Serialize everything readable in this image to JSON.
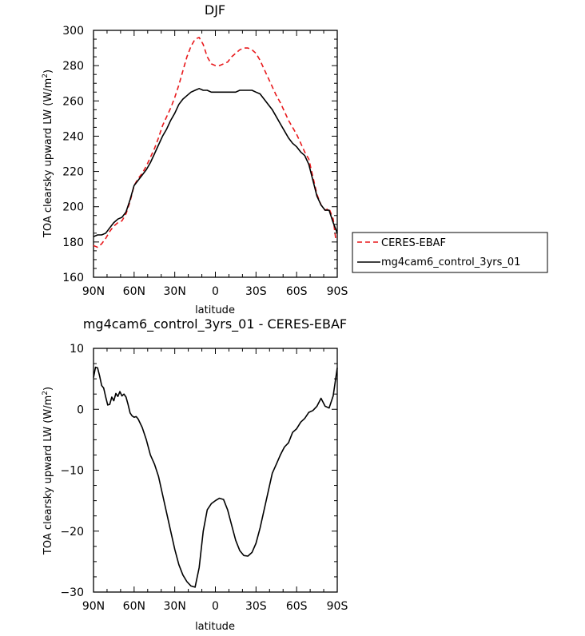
{
  "chart_data": [
    {
      "type": "line",
      "title": "DJF",
      "xlabel": "latitude",
      "ylabel": "TOA clearsky upward LW (W/m",
      "ylabel_sup": "2",
      "ylabel_close": ")",
      "xlim": [
        90,
        -90
      ],
      "ylim": [
        160,
        300
      ],
      "x_ticks": [
        90,
        60,
        30,
        0,
        -30,
        -60,
        -90
      ],
      "x_tick_labels": [
        "90N",
        "60N",
        "30N",
        "0",
        "30S",
        "60S",
        "90S"
      ],
      "y_ticks": [
        160,
        180,
        200,
        220,
        240,
        260,
        280,
        300
      ],
      "y_tick_labels": [
        "160",
        "180",
        "200",
        "220",
        "240",
        "260",
        "280",
        "300"
      ],
      "grid": false,
      "legend_position": "right-bottom",
      "series": [
        {
          "name": "CERES-EBAF",
          "color": "#e8191c",
          "dash": "dashed",
          "points": [
            [
              90,
              178
            ],
            [
              87,
              177
            ],
            [
              84,
              179
            ],
            [
              81,
              182
            ],
            [
              78,
              186
            ],
            [
              75,
              189
            ],
            [
              72,
              191
            ],
            [
              69,
              192
            ],
            [
              66,
              196
            ],
            [
              63,
              203
            ],
            [
              60,
              212
            ],
            [
              57,
              216
            ],
            [
              54,
              219
            ],
            [
              51,
              223
            ],
            [
              48,
              228
            ],
            [
              45,
              233
            ],
            [
              42,
              239
            ],
            [
              39,
              246
            ],
            [
              36,
              251
            ],
            [
              33,
              256
            ],
            [
              30,
              262
            ],
            [
              27,
              269
            ],
            [
              24,
              277
            ],
            [
              21,
              285
            ],
            [
              18,
              291
            ],
            [
              15,
              295
            ],
            [
              12,
              296
            ],
            [
              9,
              292
            ],
            [
              6,
              285
            ],
            [
              3,
              281
            ],
            [
              0,
              280
            ],
            [
              -3,
              280
            ],
            [
              -6,
              281
            ],
            [
              -9,
              282
            ],
            [
              -12,
              285
            ],
            [
              -15,
              287
            ],
            [
              -18,
              289
            ],
            [
              -21,
              290
            ],
            [
              -24,
              290
            ],
            [
              -27,
              289
            ],
            [
              -30,
              287
            ],
            [
              -33,
              283
            ],
            [
              -36,
              278
            ],
            [
              -39,
              273
            ],
            [
              -42,
              268
            ],
            [
              -45,
              263
            ],
            [
              -48,
              259
            ],
            [
              -51,
              254
            ],
            [
              -54,
              249
            ],
            [
              -57,
              245
            ],
            [
              -60,
              241
            ],
            [
              -63,
              236
            ],
            [
              -66,
              231
            ],
            [
              -69,
              227
            ],
            [
              -72,
              217
            ],
            [
              -75,
              207
            ],
            [
              -78,
              201
            ],
            [
              -81,
              198
            ],
            [
              -84,
              199
            ],
            [
              -87,
              193
            ],
            [
              -89,
              181
            ]
          ]
        },
        {
          "name": "mg4cam6_control_3yrs_01",
          "color": "#000000",
          "dash": "solid",
          "points": [
            [
              90,
              183
            ],
            [
              87,
              184
            ],
            [
              84,
              184
            ],
            [
              81,
              185
            ],
            [
              78,
              188
            ],
            [
              75,
              191
            ],
            [
              72,
              193
            ],
            [
              69,
              194
            ],
            [
              66,
              197
            ],
            [
              63,
              204
            ],
            [
              60,
              212
            ],
            [
              57,
              215
            ],
            [
              54,
              218
            ],
            [
              51,
              221
            ],
            [
              48,
              225
            ],
            [
              45,
              230
            ],
            [
              42,
              235
            ],
            [
              39,
              240
            ],
            [
              36,
              244
            ],
            [
              33,
              249
            ],
            [
              30,
              253
            ],
            [
              27,
              258
            ],
            [
              24,
              261
            ],
            [
              21,
              263
            ],
            [
              18,
              265
            ],
            [
              15,
              266
            ],
            [
              12,
              267
            ],
            [
              9,
              266
            ],
            [
              6,
              266
            ],
            [
              3,
              265
            ],
            [
              0,
              265
            ],
            [
              -3,
              265
            ],
            [
              -6,
              265
            ],
            [
              -9,
              265
            ],
            [
              -12,
              265
            ],
            [
              -15,
              265
            ],
            [
              -18,
              266
            ],
            [
              -21,
              266
            ],
            [
              -24,
              266
            ],
            [
              -27,
              266
            ],
            [
              -30,
              265
            ],
            [
              -33,
              264
            ],
            [
              -36,
              261
            ],
            [
              -39,
              258
            ],
            [
              -42,
              255
            ],
            [
              -45,
              251
            ],
            [
              -48,
              247
            ],
            [
              -51,
              243
            ],
            [
              -54,
              239
            ],
            [
              -57,
              236
            ],
            [
              -60,
              234
            ],
            [
              -63,
              231
            ],
            [
              -66,
              229
            ],
            [
              -69,
              224
            ],
            [
              -72,
              215
            ],
            [
              -75,
              206
            ],
            [
              -78,
              201
            ],
            [
              -81,
              198
            ],
            [
              -84,
              198
            ],
            [
              -87,
              191
            ],
            [
              -90,
              185
            ]
          ]
        }
      ]
    },
    {
      "type": "line",
      "title": "mg4cam6_control_3yrs_01 - CERES-EBAF",
      "xlabel": "latitude",
      "ylabel": "TOA clearsky upward LW (W/m",
      "ylabel_sup": "2",
      "ylabel_close": ")",
      "xlim": [
        90,
        -90
      ],
      "ylim": [
        -30,
        10
      ],
      "x_ticks": [
        90,
        60,
        30,
        0,
        -30,
        -60,
        -90
      ],
      "x_tick_labels": [
        "90N",
        "60N",
        "30N",
        "0",
        "30S",
        "60S",
        "90S"
      ],
      "y_ticks": [
        -30,
        -20,
        -10,
        0,
        10
      ],
      "y_tick_labels": [
        "−30",
        "−20",
        "−10",
        "0",
        "10"
      ],
      "grid": false,
      "series": [
        {
          "color": "#000000",
          "dash": "solid",
          "points": [
            [
              90,
              5.2
            ],
            [
              88.5,
              6.9
            ],
            [
              87,
              6.8
            ],
            [
              85.5,
              5.5
            ],
            [
              84,
              3.9
            ],
            [
              82.5,
              3.5
            ],
            [
              81,
              2
            ],
            [
              79.5,
              0.7
            ],
            [
              78,
              0.8
            ],
            [
              76.5,
              2
            ],
            [
              75,
              1.4
            ],
            [
              73.5,
              2.6
            ],
            [
              72,
              2.1
            ],
            [
              70.5,
              2.9
            ],
            [
              69,
              2.2
            ],
            [
              67.5,
              2.5
            ],
            [
              66,
              2
            ],
            [
              64.5,
              0.8
            ],
            [
              63,
              -0.6
            ],
            [
              61.5,
              -1.1
            ],
            [
              60,
              -1.3
            ],
            [
              58.5,
              -1.2
            ],
            [
              57,
              -1.6
            ],
            [
              54,
              -3
            ],
            [
              51,
              -5
            ],
            [
              48,
              -7.5
            ],
            [
              45,
              -9
            ],
            [
              42,
              -11
            ],
            [
              39,
              -14
            ],
            [
              36,
              -17
            ],
            [
              33,
              -20
            ],
            [
              30,
              -23
            ],
            [
              27,
              -25.5
            ],
            [
              24,
              -27.2
            ],
            [
              21,
              -28.3
            ],
            [
              18,
              -29
            ],
            [
              15,
              -29.2
            ],
            [
              12,
              -26
            ],
            [
              9,
              -20
            ],
            [
              6,
              -16.5
            ],
            [
              3,
              -15.5
            ],
            [
              0,
              -15
            ],
            [
              -3,
              -14.6
            ],
            [
              -6,
              -14.8
            ],
            [
              -9,
              -16.5
            ],
            [
              -12,
              -19
            ],
            [
              -15,
              -21.5
            ],
            [
              -18,
              -23.2
            ],
            [
              -21,
              -24
            ],
            [
              -24,
              -24.1
            ],
            [
              -27,
              -23.5
            ],
            [
              -30,
              -22
            ],
            [
              -33,
              -19.5
            ],
            [
              -36,
              -16.5
            ],
            [
              -39,
              -13.5
            ],
            [
              -42,
              -10.5
            ],
            [
              -45,
              -9
            ],
            [
              -48,
              -7.5
            ],
            [
              -51,
              -6.2
            ],
            [
              -54,
              -5.5
            ],
            [
              -57,
              -3.8
            ],
            [
              -60,
              -3.2
            ],
            [
              -63,
              -2.1
            ],
            [
              -66,
              -1.5
            ],
            [
              -69,
              -0.5
            ],
            [
              -72,
              -0.2
            ],
            [
              -75,
              0.5
            ],
            [
              -78,
              1.8
            ],
            [
              -81,
              0.5
            ],
            [
              -84,
              0.2
            ],
            [
              -87,
              2.2
            ],
            [
              -90,
              6.8
            ]
          ]
        }
      ]
    }
  ]
}
